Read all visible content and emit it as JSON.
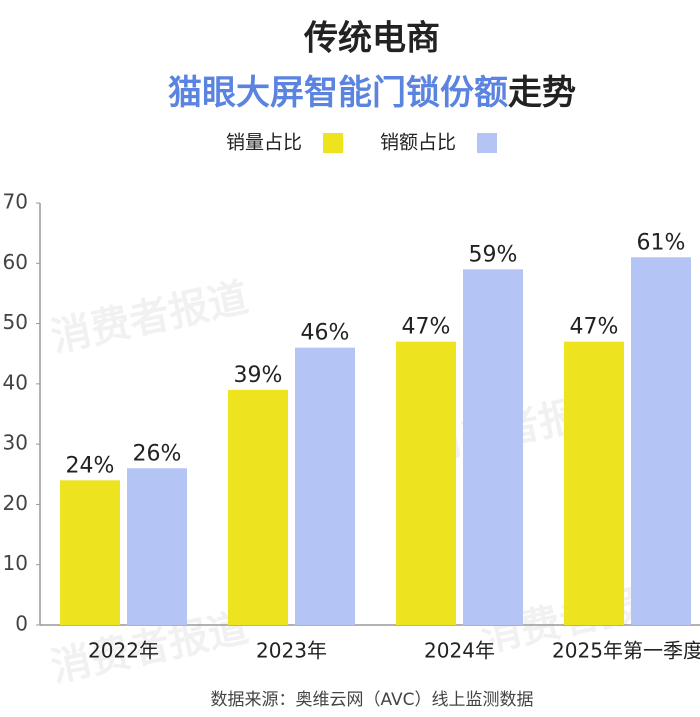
{
  "chart_data": {
    "type": "bar",
    "title": "传统电商",
    "subtitle": {
      "highlight": "猫眼大屏智能门锁份额",
      "rest": "走势"
    },
    "categories": [
      "2022年",
      "2023年",
      "2024年",
      "2025年第一季度"
    ],
    "series": [
      {
        "name": "销量占比",
        "color": "#ede41f",
        "values": [
          24,
          39,
          47,
          47
        ],
        "value_labels": [
          "24%",
          "39%",
          "47%",
          "47%"
        ]
      },
      {
        "name": "销额占比",
        "color": "#b4c4f5",
        "values": [
          26,
          46,
          59,
          61
        ],
        "value_labels": [
          "26%",
          "46%",
          "59%",
          "61%"
        ]
      }
    ],
    "ylim": [
      0,
      70
    ],
    "yticks": [
      0,
      10,
      20,
      30,
      40,
      50,
      60,
      70
    ],
    "subtitle_color": "#5b84e0",
    "source": "数据来源：奥维云网（AVC）线上监测数据",
    "watermark": "消费者报道"
  }
}
